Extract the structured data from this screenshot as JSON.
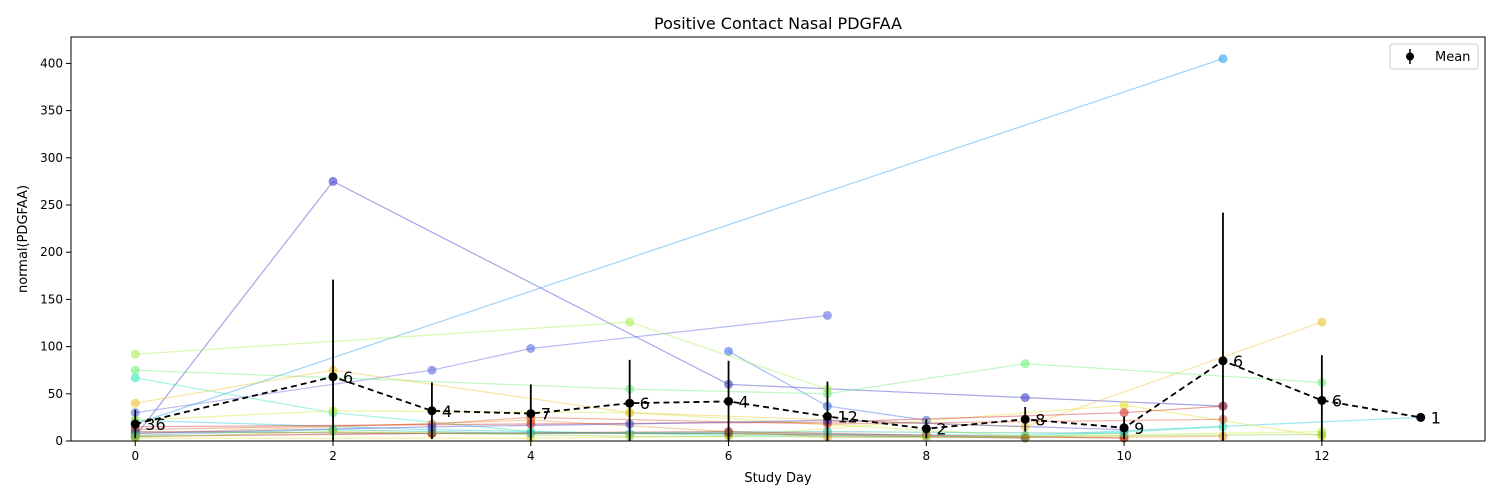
{
  "chart_data": {
    "type": "line",
    "title": "Positive Contact Nasal PDGFAA",
    "xlabel": "Study Day",
    "ylabel": "normal(PDGFAA)",
    "xlim": [
      -0.65,
      13.65
    ],
    "ylim": [
      0,
      428
    ],
    "xticks": [
      0,
      2,
      4,
      6,
      8,
      10,
      12
    ],
    "yticks": [
      0,
      50,
      100,
      150,
      200,
      250,
      300,
      350,
      400
    ],
    "legend": {
      "entries": [
        "Mean"
      ],
      "position": "top-right"
    },
    "mean": {
      "name": "Mean",
      "x": [
        0,
        2,
        3,
        4,
        5,
        6,
        7,
        8,
        9,
        10,
        11,
        12,
        13
      ],
      "y": [
        18,
        68,
        32,
        29,
        40,
        42,
        26,
        13,
        23,
        14,
        85,
        43,
        25
      ],
      "err": [
        15,
        103,
        30,
        31,
        46,
        43,
        37,
        10,
        13,
        12,
        157,
        48,
        0
      ],
      "n": [
        "36",
        "6",
        "4",
        "7",
        "6",
        "4",
        "12",
        "2",
        "8",
        "9",
        "6",
        "6",
        "1"
      ]
    },
    "subjects": [
      {
        "color": "#3a3ac9",
        "points": [
          [
            0,
            5
          ],
          [
            2,
            275
          ],
          [
            6,
            60
          ],
          [
            9,
            46
          ],
          [
            11,
            37
          ]
        ]
      },
      {
        "color": "#5a6ae0",
        "points": [
          [
            0,
            30
          ],
          [
            3,
            75
          ],
          [
            4,
            98
          ],
          [
            7,
            133
          ]
        ]
      },
      {
        "color": "#3f6fe8",
        "points": [
          [
            6,
            95
          ],
          [
            7,
            37
          ],
          [
            8,
            22
          ]
        ]
      },
      {
        "color": "#2aa0f0",
        "points": [
          [
            0,
            18
          ],
          [
            11,
            405
          ]
        ]
      },
      {
        "color": "#1ec8e0",
        "points": [
          [
            0,
            22
          ],
          [
            3,
            12
          ],
          [
            5,
            8
          ],
          [
            9,
            6
          ],
          [
            13,
            25
          ]
        ]
      },
      {
        "color": "#33e8b8",
        "points": [
          [
            0,
            67
          ],
          [
            2,
            30
          ],
          [
            4,
            10
          ],
          [
            6,
            6
          ],
          [
            9,
            4
          ],
          [
            11,
            15
          ]
        ]
      },
      {
        "color": "#6cf07a",
        "points": [
          [
            0,
            75
          ],
          [
            5,
            55
          ],
          [
            7,
            50
          ],
          [
            9,
            82
          ],
          [
            12,
            62
          ]
        ]
      },
      {
        "color": "#a6f050",
        "points": [
          [
            0,
            92
          ],
          [
            5,
            126
          ],
          [
            7,
            55
          ]
        ]
      },
      {
        "color": "#c8ee3a",
        "points": [
          [
            0,
            22
          ],
          [
            2,
            32
          ],
          [
            5,
            30
          ],
          [
            9,
            5
          ],
          [
            12,
            10
          ]
        ]
      },
      {
        "color": "#e6e030",
        "points": [
          [
            0,
            3
          ],
          [
            4,
            3
          ],
          [
            6,
            5
          ],
          [
            10,
            38
          ],
          [
            12,
            5
          ]
        ]
      },
      {
        "color": "#f0c030",
        "points": [
          [
            0,
            40
          ],
          [
            2,
            75
          ],
          [
            5,
            30
          ],
          [
            9,
            15
          ],
          [
            12,
            126
          ]
        ]
      },
      {
        "color": "#f09a2a",
        "points": [
          [
            0,
            8
          ],
          [
            4,
            22
          ],
          [
            7,
            4
          ],
          [
            10,
            4
          ],
          [
            11,
            5
          ]
        ]
      },
      {
        "color": "#e06030",
        "points": [
          [
            0,
            12
          ],
          [
            3,
            18
          ],
          [
            4,
            25
          ],
          [
            7,
            18
          ],
          [
            11,
            23
          ]
        ]
      },
      {
        "color": "#d03030",
        "points": [
          [
            0,
            15
          ],
          [
            4,
            18
          ],
          [
            7,
            20
          ],
          [
            10,
            30
          ],
          [
            11,
            37
          ]
        ]
      },
      {
        "color": "#b8200e",
        "points": [
          [
            0,
            5
          ],
          [
            3,
            8
          ],
          [
            6,
            10
          ],
          [
            8,
            6
          ],
          [
            10,
            3
          ]
        ]
      },
      {
        "color": "#8a4a2a",
        "points": [
          [
            0,
            10
          ],
          [
            3,
            8
          ],
          [
            6,
            8
          ],
          [
            9,
            3
          ]
        ]
      },
      {
        "color": "#4a4ad0",
        "points": [
          [
            0,
            8
          ],
          [
            3,
            15
          ],
          [
            5,
            18
          ],
          [
            7,
            22
          ],
          [
            10,
            12
          ]
        ]
      },
      {
        "color": "#30c0a0",
        "points": [
          [
            0,
            6
          ],
          [
            2,
            12
          ],
          [
            4,
            8
          ],
          [
            7,
            10
          ],
          [
            10,
            8
          ]
        ]
      },
      {
        "color": "#90d040",
        "points": [
          [
            0,
            4
          ],
          [
            2,
            10
          ],
          [
            5,
            5
          ],
          [
            8,
            4
          ],
          [
            12,
            7
          ]
        ]
      }
    ]
  }
}
